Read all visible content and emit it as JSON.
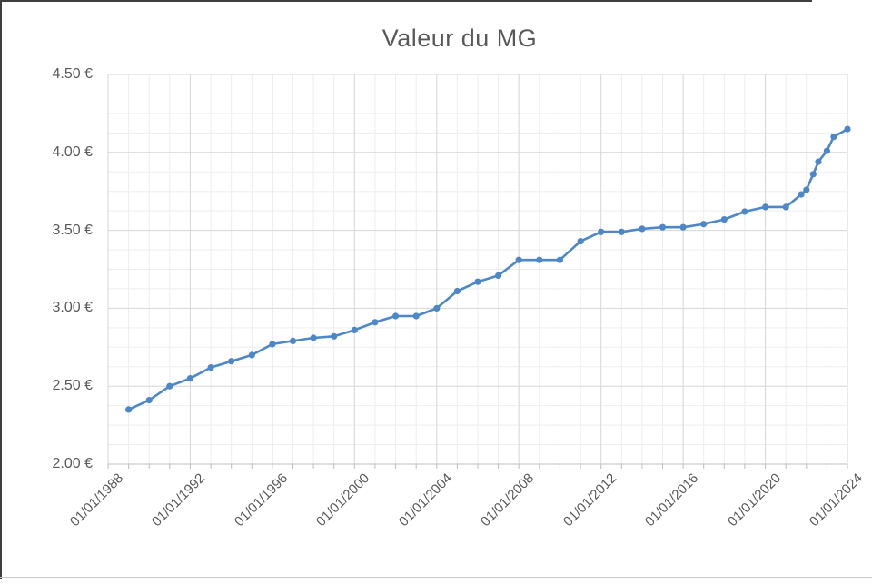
{
  "window": {
    "title": "Valeur du MG"
  },
  "colors": {
    "series": "#4e87c8",
    "grid_major": "#d6d6d6",
    "grid_minor": "#ededed",
    "axis_line": "#bfbfbf",
    "tick": "#bfbfbf",
    "text": "#595959",
    "background": "#ffffff"
  },
  "chart_data": {
    "type": "line",
    "title": "Valeur du MG",
    "series_name": "Valeur du MG",
    "xlabel": "",
    "ylabel": "",
    "legend": "none",
    "grid": true,
    "x_range_years": [
      1988,
      2024
    ],
    "y_range": [
      2.0,
      4.5
    ],
    "x_major_step_years": 4,
    "x_minor_step_years": 1,
    "y_major_step": 0.5,
    "y_minor_step": 0.125,
    "x_tick_labels": [
      "01/01/1988",
      "01/01/1992",
      "01/01/1996",
      "01/01/2000",
      "01/01/2004",
      "01/01/2008",
      "01/01/2012",
      "01/01/2016",
      "01/01/2020",
      "01/01/2024"
    ],
    "y_tick_labels": [
      "4.50 €",
      "4.00 €",
      "3.50 €",
      "3.00 €",
      "2.50 €",
      "2.00 €"
    ],
    "y_tick_values": [
      4.5,
      4.0,
      3.5,
      3.0,
      2.5,
      2.0
    ],
    "points": [
      {
        "date": "01/01/1989",
        "value": 2.35
      },
      {
        "date": "01/01/1990",
        "value": 2.41
      },
      {
        "date": "01/01/1991",
        "value": 2.5
      },
      {
        "date": "01/01/1992",
        "value": 2.55
      },
      {
        "date": "01/01/1993",
        "value": 2.62
      },
      {
        "date": "01/01/1994",
        "value": 2.66
      },
      {
        "date": "01/01/1995",
        "value": 2.7
      },
      {
        "date": "01/01/1996",
        "value": 2.77
      },
      {
        "date": "01/01/1997",
        "value": 2.79
      },
      {
        "date": "01/01/1998",
        "value": 2.81
      },
      {
        "date": "01/01/1999",
        "value": 2.82
      },
      {
        "date": "01/01/2000",
        "value": 2.86
      },
      {
        "date": "01/01/2001",
        "value": 2.91
      },
      {
        "date": "01/01/2002",
        "value": 2.95
      },
      {
        "date": "01/01/2003",
        "value": 2.95
      },
      {
        "date": "01/01/2004",
        "value": 3.0
      },
      {
        "date": "01/01/2005",
        "value": 3.11
      },
      {
        "date": "01/01/2006",
        "value": 3.17
      },
      {
        "date": "01/01/2007",
        "value": 3.21
      },
      {
        "date": "01/01/2008",
        "value": 3.31
      },
      {
        "date": "01/01/2009",
        "value": 3.31
      },
      {
        "date": "01/01/2010",
        "value": 3.31
      },
      {
        "date": "01/01/2011",
        "value": 3.43
      },
      {
        "date": "01/01/2012",
        "value": 3.49
      },
      {
        "date": "01/01/2013",
        "value": 3.49
      },
      {
        "date": "01/01/2014",
        "value": 3.51
      },
      {
        "date": "01/01/2015",
        "value": 3.52
      },
      {
        "date": "01/01/2016",
        "value": 3.52
      },
      {
        "date": "01/01/2017",
        "value": 3.54
      },
      {
        "date": "01/01/2018",
        "value": 3.57
      },
      {
        "date": "01/01/2019",
        "value": 3.62
      },
      {
        "date": "01/01/2020",
        "value": 3.65
      },
      {
        "date": "01/01/2021",
        "value": 3.65
      },
      {
        "date": "01/10/2021",
        "value": 3.73
      },
      {
        "date": "01/01/2022",
        "value": 3.76
      },
      {
        "date": "01/05/2022",
        "value": 3.86
      },
      {
        "date": "01/08/2022",
        "value": 3.94
      },
      {
        "date": "01/01/2023",
        "value": 4.01
      },
      {
        "date": "01/05/2023",
        "value": 4.1
      },
      {
        "date": "01/01/2024",
        "value": 4.15
      }
    ]
  }
}
